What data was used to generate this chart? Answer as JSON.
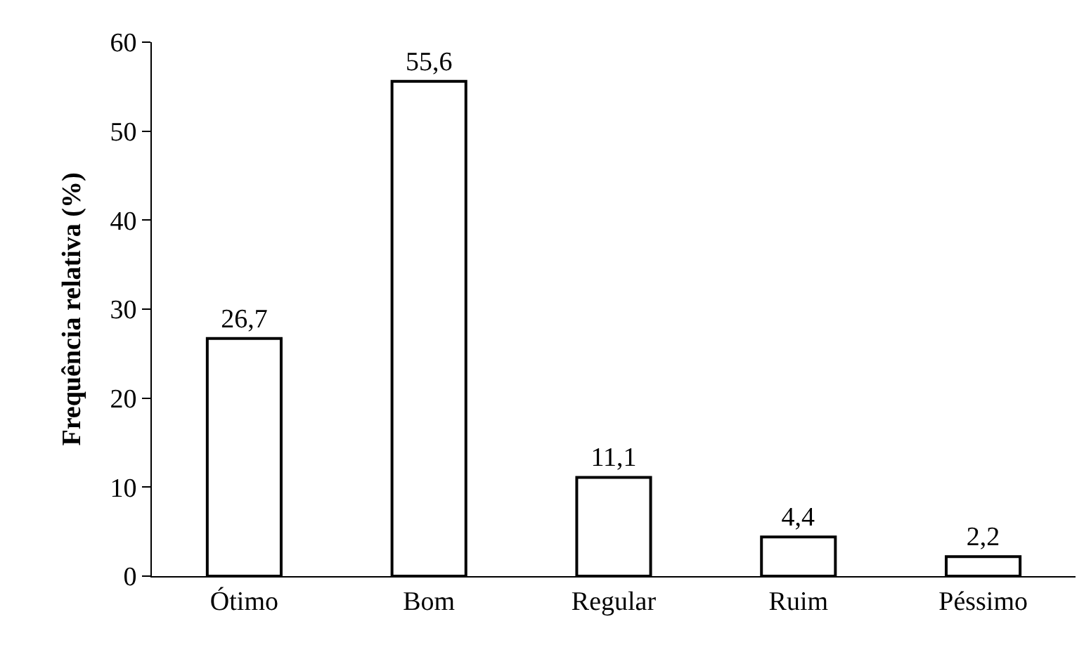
{
  "chart_data": {
    "type": "bar",
    "ylabel": "Frequência relativa (%)",
    "categories": [
      "Ótimo",
      "Bom",
      "Regular",
      "Ruim",
      "Péssimo"
    ],
    "values": [
      26.7,
      55.6,
      11.1,
      4.4,
      2.2
    ],
    "value_labels": [
      "26,7",
      "55,6",
      "11,1",
      "4,4",
      "2,2"
    ],
    "color": "#ffffff",
    "ylim": [
      0,
      60
    ],
    "yticks": [
      0,
      10,
      20,
      30,
      40,
      50,
      60
    ]
  }
}
